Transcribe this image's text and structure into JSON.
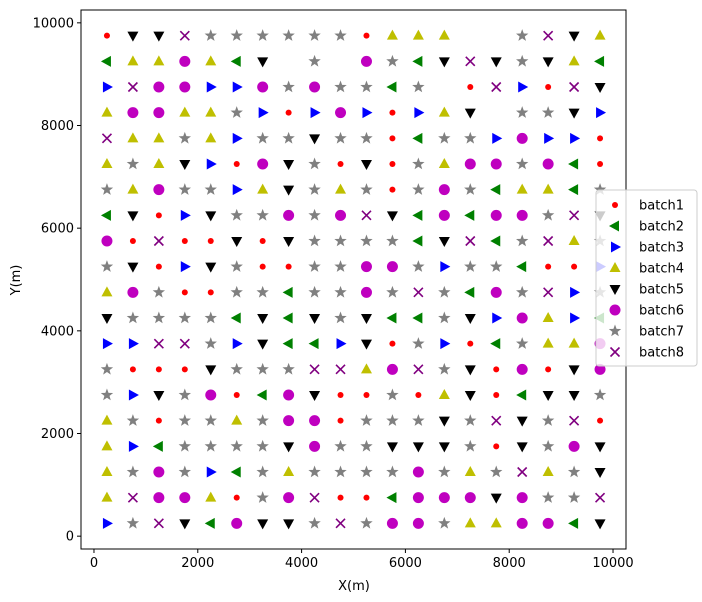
{
  "chart_data": {
    "type": "scatter",
    "title": "",
    "xlabel": "X(m)",
    "ylabel": "Y(m)",
    "xlim": [
      -250,
      10250
    ],
    "ylim": [
      -250,
      10250
    ],
    "xticks": [
      0,
      2000,
      4000,
      6000,
      8000,
      10000
    ],
    "yticks": [
      0,
      2000,
      4000,
      6000,
      8000,
      10000
    ],
    "grid": false,
    "legend_position": "right",
    "grid_x": [
      250,
      750,
      1250,
      1750,
      2250,
      2750,
      3250,
      3750,
      4250,
      4750,
      5250,
      5750,
      6250,
      6750,
      7250,
      7750,
      8250,
      8750,
      9250,
      9750
    ],
    "grid_y": [
      9750,
      9250,
      8750,
      8250,
      7750,
      7250,
      6750,
      6250,
      5750,
      5250,
      4750,
      4250,
      3750,
      3250,
      2750,
      2250,
      1750,
      1250,
      750,
      250
    ],
    "assignment_rows_top_to_bottom": [
      "RBBCGGHHHGRAAA55HCBA",
      "2AAFA2B5G5FH2BCBGBA2",
      "3CFF33FHFHH2H5RC3RCB",
      "AFFAAH3R3F3R3AB5HGB3",
      "CAAHA3GHBGHR2HH3F33R",
      "AHAB3RFBHRBRHAFFGF2R",
      "HAFHH3ABHAHRHFH2AA2H",
      "2BR3BHHFHFCB2F2FFGCB",
      "FRCRRBRBHHHH2BC2GCAH",
      "HBR3BHRRHHFFH3GH2RR3",
      "AFHRRHH2HGFGCH2FGC3H",
      "BHHHH2B2BGB22HB3FA32",
      "33CCG3B223BRH3R2HAAF",
      "HRRRBHHHCCAFCHBRFRBF",
      "H3BHFR2FBRRGRABR2BBH",
      "AHRHHAHFFRGHHBHCBGCR",
      "A32HHHHBFHHBBBHRBGFB",
      "AHFH32HAGHHGFHAHCAHB",
      "ACFFARHFCRR2FFFBFHHC",
      "3HCB2FBBHCHFFGAAFF2B"
    ],
    "assignment_key": {
      "R": "batch1",
      "2": "batch2",
      "3": "batch3",
      "A": "batch4",
      "B": "batch5",
      "F": "batch6",
      "H": "batch7",
      "C": "batch8",
      "G": "batch7"
    },
    "series": [
      {
        "name": "batch1",
        "marker": "dot",
        "color": "#ff0000"
      },
      {
        "name": "batch2",
        "marker": "triangle-left",
        "color": "#008000"
      },
      {
        "name": "batch3",
        "marker": "triangle-right",
        "color": "#0000ff"
      },
      {
        "name": "batch4",
        "marker": "triangle-up",
        "color": "#bfbf00"
      },
      {
        "name": "batch5",
        "marker": "triangle-down",
        "color": "#000000"
      },
      {
        "name": "batch6",
        "marker": "circle",
        "color": "#bf00bf"
      },
      {
        "name": "batch7",
        "marker": "star",
        "color": "#808080"
      },
      {
        "name": "batch8",
        "marker": "x",
        "color": "#800080"
      }
    ]
  }
}
